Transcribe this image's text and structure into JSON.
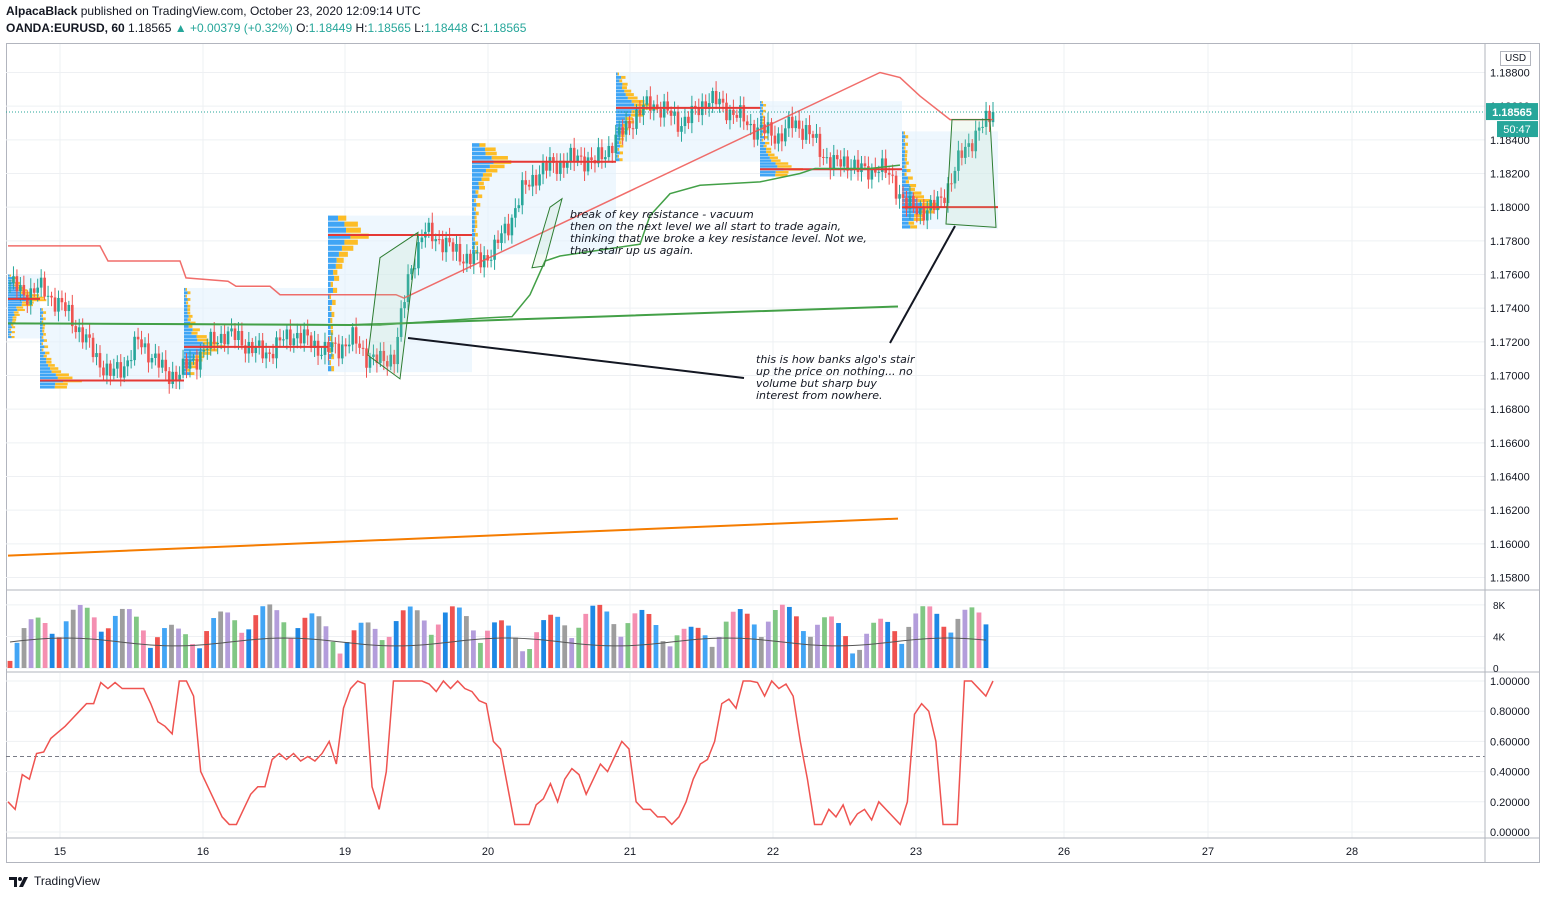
{
  "header": {
    "author": "AlpacaBlack",
    "published": "published on TradingView.com, October 23, 2020 12:09:14 UTC",
    "symbol": "OANDA:EURUSD, 60",
    "last": "1.18565",
    "change": "+0.00379 (+0.32%)",
    "open_label": "O:",
    "open": "1.18449",
    "high_label": "H:",
    "high": "1.18565",
    "low_label": "L:",
    "low": "1.18448",
    "close_label": "C:",
    "close": "1.18565"
  },
  "price_axis": {
    "currency": "USD",
    "current_price": "1.18565",
    "countdown": "50:47"
  },
  "notes": {
    "resistance": "break of key resistance - vacuum\nthen on the next level we all start to trade again,\nthinking that we broke a key resistance level. Not we,\nthey stair up us again.",
    "algo": "this is how banks algo's stair\nup the price on nothing... no\nvolume but sharp buy\ninterest from nowhere."
  },
  "footer": {
    "brand": "TradingView",
    "logo_icon": "tradingview-logo-icon"
  },
  "colors": {
    "up": "#26a69a",
    "down": "#ef5350",
    "stoch": "#ef5350",
    "sma_fast": "#43a047",
    "sma_slow": "#f57c00"
  },
  "chart_data": [
    {
      "type": "candlestick",
      "title": "",
      "x_ticks": [
        "15",
        "16",
        "19",
        "20",
        "21",
        "22",
        "23",
        "26",
        "27",
        "28"
      ],
      "y_ticks": [
        "1.18800",
        "1.18600",
        "1.18400",
        "1.18200",
        "1.18000",
        "1.17800",
        "1.17600",
        "1.17400",
        "1.17200",
        "1.17000",
        "1.16800",
        "1.16600",
        "1.16400",
        "1.16200",
        "1.16000",
        "1.15800"
      ],
      "ylim": [
        1.1571,
        1.1887
      ],
      "close_path": [
        1.1755,
        1.1748,
        1.1752,
        1.1746,
        1.1738,
        1.1725,
        1.1712,
        1.17,
        1.1706,
        1.172,
        1.1712,
        1.17,
        1.1702,
        1.171,
        1.1718,
        1.1725,
        1.1722,
        1.1716,
        1.1713,
        1.172,
        1.1725,
        1.172,
        1.1715,
        1.1716,
        1.1722,
        1.1712,
        1.1708,
        1.1712,
        1.176,
        1.1785,
        1.1782,
        1.1775,
        1.177,
        1.1768,
        1.1775,
        1.179,
        1.181,
        1.182,
        1.1825,
        1.1827,
        1.183,
        1.1826,
        1.1835,
        1.1845,
        1.1855,
        1.1862,
        1.1857,
        1.185,
        1.1855,
        1.1865,
        1.186,
        1.1855,
        1.1848,
        1.1845,
        1.1842,
        1.185,
        1.1845,
        1.1832,
        1.1825,
        1.1827,
        1.182,
        1.1825,
        1.1815,
        1.18,
        1.1798,
        1.18,
        1.1815,
        1.1835,
        1.1845,
        1.18565
      ],
      "resistance_levels": [
        1.17455,
        1.1697,
        1.1717,
        1.17835,
        1.1827,
        1.1859,
        1.18225,
        1.18
      ],
      "sma_fast": [
        1.1731,
        1.1741
      ],
      "sma_slow": [
        1.1593,
        1.1615
      ]
    },
    {
      "type": "bar",
      "title": "Volume",
      "y_ticks": [
        "8K",
        "4K",
        "0"
      ],
      "ylim": [
        0,
        9000
      ]
    },
    {
      "type": "line",
      "title": "",
      "y_ticks": [
        "1.00000",
        "0.80000",
        "0.60000",
        "0.40000",
        "0.20000",
        "0.00000"
      ],
      "ylim": [
        -0.02,
        1.02
      ],
      "midline": 0.5,
      "values": [
        0.2,
        0.15,
        0.38,
        0.35,
        0.52,
        0.53,
        0.62,
        0.66,
        0.7,
        0.75,
        0.8,
        0.85,
        0.85,
        0.99,
        0.95,
        0.99,
        0.95,
        0.95,
        0.95,
        0.95,
        0.85,
        0.73,
        0.7,
        0.65,
        1.0,
        1.0,
        0.9,
        0.4,
        0.3,
        0.2,
        0.1,
        0.05,
        0.05,
        0.15,
        0.25,
        0.3,
        0.3,
        0.48,
        0.52,
        0.48,
        0.52,
        0.47,
        0.5,
        0.47,
        0.52,
        0.6,
        0.45,
        0.82,
        0.95,
        1.0,
        0.98,
        0.3,
        0.15,
        0.4,
        1.0,
        1.0,
        1.0,
        1.0,
        1.0,
        0.98,
        0.93,
        1.0,
        0.95,
        1.0,
        0.95,
        0.93,
        0.87,
        0.85,
        0.6,
        0.55,
        0.3,
        0.05,
        0.05,
        0.05,
        0.18,
        0.22,
        0.32,
        0.2,
        0.35,
        0.42,
        0.38,
        0.25,
        0.35,
        0.45,
        0.4,
        0.5,
        0.6,
        0.55,
        0.2,
        0.15,
        0.15,
        0.1,
        0.1,
        0.05,
        0.1,
        0.2,
        0.35,
        0.45,
        0.48,
        0.6,
        0.85,
        0.88,
        0.82,
        1.0,
        1.0,
        0.99,
        0.9,
        1.0,
        0.95,
        0.98,
        0.9,
        0.6,
        0.35,
        0.05,
        0.05,
        0.15,
        0.1,
        0.18,
        0.05,
        0.12,
        0.15,
        0.08,
        0.2,
        0.15,
        0.1,
        0.05,
        0.2,
        0.78,
        0.85,
        0.8,
        0.6,
        0.05,
        0.05,
        0.05,
        1.0,
        1.0,
        0.95,
        0.9,
        1.0
      ]
    }
  ]
}
